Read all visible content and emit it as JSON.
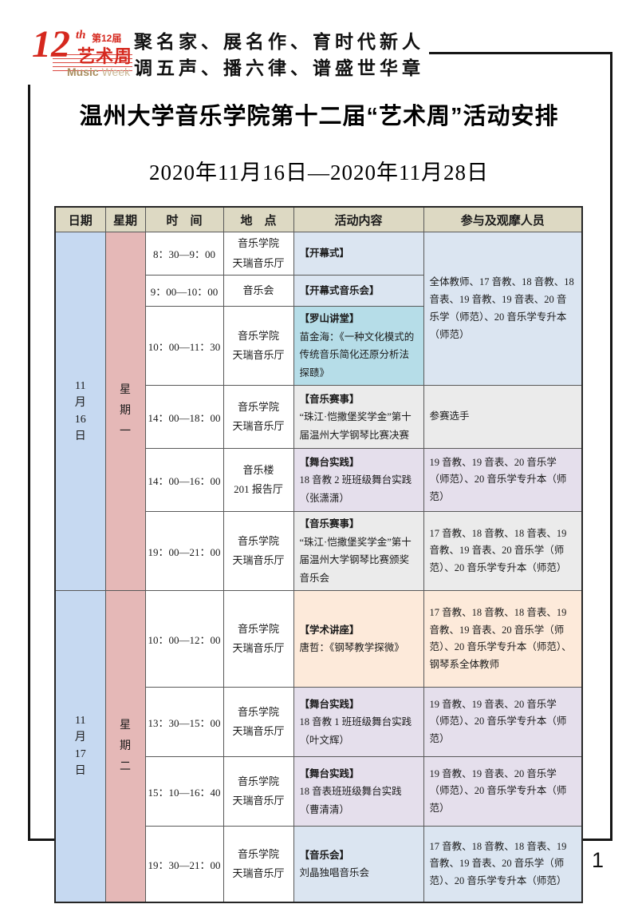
{
  "logo": {
    "number": "12",
    "ordinal": "th",
    "edition": "第12届",
    "name": "艺术周",
    "word_bold": "Music",
    "word_light": "Week",
    "brand_red": "#d5281e",
    "brand_gold": "#a98d5f"
  },
  "motto": {
    "line1": "聚名家、展名作、育时代新人",
    "line2": "调五声、播六律、谱盛世华章"
  },
  "title": "温州大学音乐学院第十二届“艺术周”活动安排",
  "date_range": "2020年11月16日—2020年11月28日",
  "page_number": "1",
  "palette": {
    "header_bg": "#ddd9c3",
    "date_col_bg": "#c6d9f1",
    "week_col_bg": "#e5b8b7",
    "row_blue": "#dbe5f1",
    "row_teal": "#b6dde8",
    "row_gray": "#ebebeb",
    "row_purple": "#e5dfec",
    "row_peach": "#fdeada"
  },
  "table": {
    "headers": [
      "日期",
      "星期",
      "时　间",
      "地　点",
      "活动内容",
      "参与及观摩人员"
    ],
    "day1": {
      "date_lines": [
        "11",
        "月",
        "16",
        "日"
      ],
      "week_lines": [
        "星",
        "期",
        "一"
      ]
    },
    "day2": {
      "date_lines": [
        "11",
        "月",
        "17",
        "日"
      ],
      "week_lines": [
        "星",
        "期",
        "二"
      ]
    },
    "rows": [
      {
        "time": "8：30—9：00",
        "loc1": "音乐学院",
        "loc2": "天瑞音乐厅",
        "tag": "【开幕式】",
        "desc": "",
        "participants": "全体教师、17 音教、18 音教、18 音表、19 音教、19 音表、20 音乐学（师范）、20 音乐学专升本（师范）",
        "act_bg": "#dbe5f1",
        "part_bg": "#dbe5f1"
      },
      {
        "time": "9：00—10：00",
        "loc1": "音乐会",
        "loc2": "",
        "tag": "【开幕式音乐会】",
        "desc": "",
        "act_bg": "#dbe5f1"
      },
      {
        "time": "10：00—11：30",
        "loc1": "音乐学院",
        "loc2": "天瑞音乐厅",
        "tag": "【罗山讲堂】",
        "desc": "苗金海：《一种文化模式的传统音乐简化还原分析法探赜》",
        "act_bg": "#b6dde8"
      },
      {
        "time": "14：00—18：00",
        "loc1": "音乐学院",
        "loc2": "天瑞音乐厅",
        "tag": "【音乐赛事】",
        "desc": "“珠江·恺撒堡奖学金”第十届温州大学钢琴比赛决赛",
        "participants": "参赛选手",
        "act_bg": "#ebebeb",
        "part_bg": "#ebebeb"
      },
      {
        "time": "14：00—16：00",
        "loc1": "音乐楼",
        "loc2": "201 报告厅",
        "tag": "【舞台实践】",
        "desc": "18 音教 2 班班级舞台实践（张潇潇）",
        "participants": "19 音教、19 音表、20 音乐学（师范）、20 音乐学专升本（师范）",
        "act_bg": "#e5dfec",
        "part_bg": "#e5dfec"
      },
      {
        "time": "19：00—21：00",
        "loc1": "音乐学院",
        "loc2": "天瑞音乐厅",
        "tag": "【音乐赛事】",
        "desc": "“珠江·恺撒堡奖学金”第十届温州大学钢琴比赛颁奖音乐会",
        "participants": "17 音教、18 音教、18 音表、19 音教、19 音表、20 音乐学（师范）、20 音乐学专升本（师范）",
        "act_bg": "#ebebeb",
        "part_bg": "#ebebeb"
      },
      {
        "time": "10：00—12：00",
        "loc1": "音乐学院",
        "loc2": "天瑞音乐厅",
        "tag": "【学术讲座】",
        "desc": "唐哲：《钢琴教学探微》",
        "participants": "17 音教、18 音教、18 音表、19 音教、19 音表、20 音乐学（师范）、20 音乐学专升本（师范）、钢琴系全体教师",
        "act_bg": "#fdeada",
        "part_bg": "#fdeada"
      },
      {
        "time": "13：30—15：00",
        "loc1": "音乐学院",
        "loc2": "天瑞音乐厅",
        "tag": "【舞台实践】",
        "desc": "18 音教 1 班班级舞台实践（叶文辉）",
        "participants": "19 音教、19 音表、20 音乐学（师范）、20 音乐学专升本（师范）",
        "act_bg": "#e5dfec",
        "part_bg": "#e5dfec"
      },
      {
        "time": "15：10—16：40",
        "loc1": "音乐学院",
        "loc2": "天瑞音乐厅",
        "tag": "【舞台实践】",
        "desc": "18 音表班班级舞台实践（曹清清）",
        "participants": "19 音教、19 音表、20 音乐学（师范）、20 音乐学专升本（师范）",
        "act_bg": "#e5dfec",
        "part_bg": "#e5dfec"
      },
      {
        "time": "19：30—21：00",
        "loc1": "音乐学院",
        "loc2": "天瑞音乐厅",
        "tag": "【音乐会】",
        "desc": "刘晶独唱音乐会",
        "participants": "17 音教、18 音教、18 音表、19 音教、19 音表、20 音乐学（师范）、20 音乐学专升本（师范）",
        "act_bg": "#dbe5f1",
        "part_bg": "#dbe5f1"
      }
    ]
  }
}
